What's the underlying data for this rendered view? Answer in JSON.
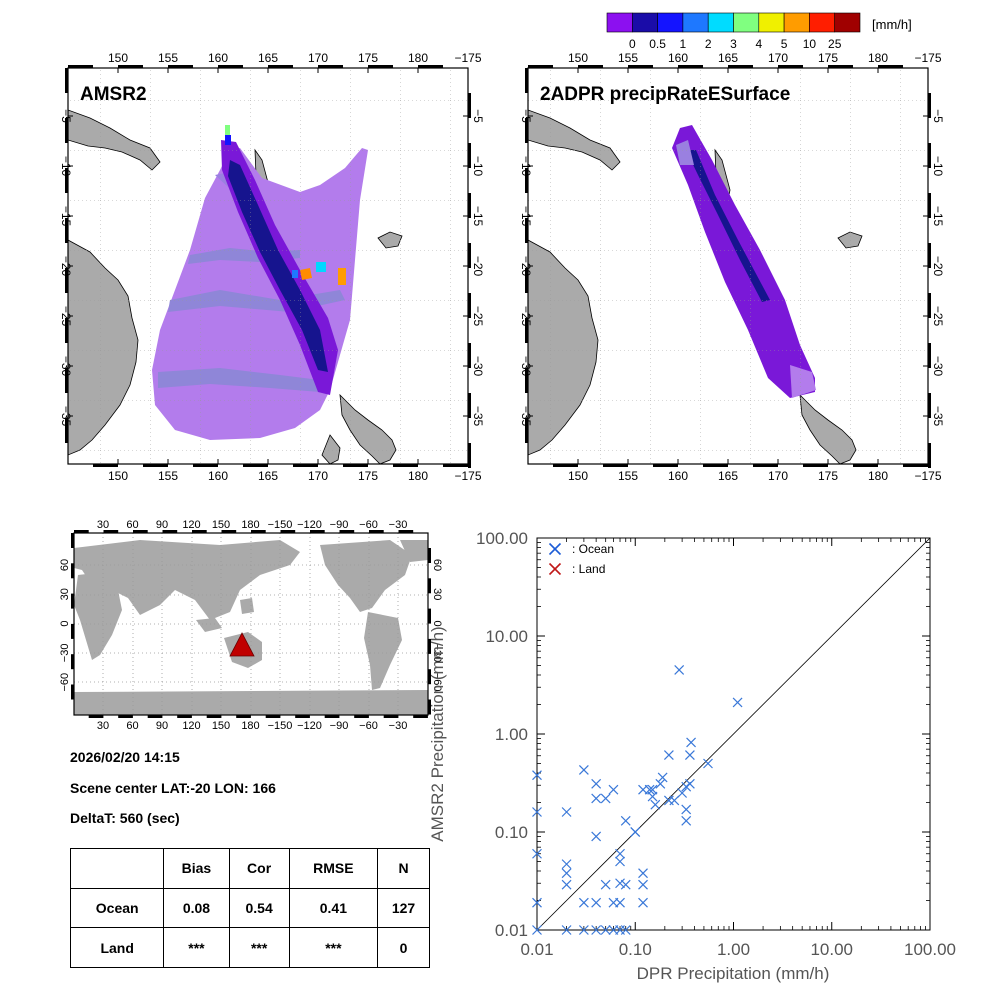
{
  "colorbar": {
    "unit": "[mm/h]",
    "labels": [
      "0",
      "0.5",
      "1",
      "2",
      "3",
      "4",
      "5",
      "10",
      "25"
    ],
    "colors": [
      "#8c10f0",
      "#1a0ca8",
      "#1414ff",
      "#1e78ff",
      "#00dcff",
      "#80ff80",
      "#f0f000",
      "#ff9c00",
      "#ff1e00",
      "#a00000"
    ]
  },
  "map_left": {
    "title": "AMSR2",
    "lon_labels": [
      "150",
      "155",
      "160",
      "165",
      "170",
      "175",
      "180",
      "−175"
    ],
    "lat_labels": [
      "−5",
      "−10",
      "−15",
      "−20",
      "−25",
      "−30",
      "−35"
    ]
  },
  "map_right": {
    "title": "2ADPR precipRateESurface",
    "lon_labels": [
      "150",
      "155",
      "160",
      "165",
      "170",
      "175",
      "180",
      "−175"
    ],
    "lat_labels": [
      "−5",
      "−10",
      "−15",
      "−20",
      "−25",
      "−30",
      "−35"
    ]
  },
  "globe": {
    "lon_labels": [
      "30",
      "60",
      "90",
      "120",
      "150",
      "180",
      "−150",
      "−120",
      "−90",
      "−60",
      "−30"
    ],
    "lat_labels": [
      "60",
      "30",
      "0",
      "−30",
      "−60"
    ],
    "marker": {
      "lon": 166,
      "lat": -20
    }
  },
  "info": {
    "datetime": "2026/02/20 14:15",
    "scene_center": "Scene center LAT:-20   LON: 166",
    "delta": "DeltaT:  560 (sec)"
  },
  "stats": {
    "headers": [
      "Bias",
      "Cor",
      "RMSE",
      "N"
    ],
    "rows": [
      {
        "label": "Ocean",
        "values": [
          "0.08",
          "0.54",
          "0.41",
          "127"
        ]
      },
      {
        "label": "Land",
        "values": [
          "***",
          "***",
          "***",
          "0"
        ]
      }
    ]
  },
  "chart_data": {
    "type": "scatter",
    "xlabel": "DPR Precipitation (mm/h)",
    "ylabel": "AMSR2 Precipitation (mm/h)",
    "xlim": [
      0.01,
      100
    ],
    "ylim": [
      0.01,
      100
    ],
    "xscale": "log",
    "yscale": "log",
    "tick_labels": [
      "0.01",
      "0.10",
      "1.00",
      "10.00",
      "100.00"
    ],
    "legend": [
      {
        "name": ": Ocean",
        "color": "#1c5cd6"
      },
      {
        "name": ": Land",
        "color": "#c01818"
      }
    ],
    "series": [
      {
        "name": ": Ocean",
        "color": "#3a78d8",
        "points": [
          [
            0.01,
            0.38
          ],
          [
            0.01,
            0.16
          ],
          [
            0.01,
            0.06
          ],
          [
            0.01,
            0.019
          ],
          [
            0.01,
            0.01
          ],
          [
            0.02,
            0.16
          ],
          [
            0.02,
            0.047
          ],
          [
            0.02,
            0.038
          ],
          [
            0.02,
            0.029
          ],
          [
            0.02,
            0.01
          ],
          [
            0.03,
            0.43
          ],
          [
            0.03,
            0.019
          ],
          [
            0.03,
            0.01
          ],
          [
            0.04,
            0.31
          ],
          [
            0.04,
            0.22
          ],
          [
            0.04,
            0.09
          ],
          [
            0.04,
            0.019
          ],
          [
            0.04,
            0.01
          ],
          [
            0.05,
            0.22
          ],
          [
            0.05,
            0.029
          ],
          [
            0.05,
            0.01
          ],
          [
            0.06,
            0.27
          ],
          [
            0.06,
            0.019
          ],
          [
            0.06,
            0.01
          ],
          [
            0.07,
            0.06
          ],
          [
            0.07,
            0.05
          ],
          [
            0.07,
            0.03
          ],
          [
            0.07,
            0.019
          ],
          [
            0.07,
            0.01
          ],
          [
            0.08,
            0.13
          ],
          [
            0.08,
            0.029
          ],
          [
            0.08,
            0.01
          ],
          [
            0.1,
            0.1
          ],
          [
            0.1,
            0.1
          ],
          [
            0.12,
            0.27
          ],
          [
            0.12,
            0.038
          ],
          [
            0.12,
            0.029
          ],
          [
            0.12,
            0.019
          ],
          [
            0.14,
            0.27
          ],
          [
            0.15,
            0.27
          ],
          [
            0.15,
            0.23
          ],
          [
            0.16,
            0.19
          ],
          [
            0.18,
            0.31
          ],
          [
            0.19,
            0.36
          ],
          [
            0.22,
            0.61
          ],
          [
            0.22,
            0.21
          ],
          [
            0.25,
            0.21
          ],
          [
            0.28,
            4.5
          ],
          [
            0.3,
            0.25
          ],
          [
            0.33,
            0.29
          ],
          [
            0.33,
            0.17
          ],
          [
            0.33,
            0.13
          ],
          [
            0.36,
            0.31
          ],
          [
            0.36,
            0.61
          ],
          [
            0.37,
            0.82
          ],
          [
            0.55,
            0.5
          ],
          [
            1.1,
            2.1
          ]
        ]
      }
    ]
  }
}
